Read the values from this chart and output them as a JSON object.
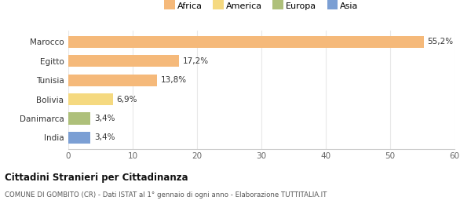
{
  "categories": [
    "India",
    "Danimarca",
    "Bolivia",
    "Tunisia",
    "Egitto",
    "Marocco"
  ],
  "values": [
    3.4,
    3.4,
    6.9,
    13.8,
    17.2,
    55.2
  ],
  "bar_colors": [
    "#7b9fd4",
    "#aec07a",
    "#f5d980",
    "#f5b97a",
    "#f5b97a",
    "#f5b97a"
  ],
  "labels": [
    "3,4%",
    "3,4%",
    "6,9%",
    "13,8%",
    "17,2%",
    "55,2%"
  ],
  "legend_labels": [
    "Africa",
    "America",
    "Europa",
    "Asia"
  ],
  "legend_colors": [
    "#f5b97a",
    "#f5d980",
    "#aec07a",
    "#7b9fd4"
  ],
  "title": "Cittadini Stranieri per Cittadinanza",
  "subtitle": "COMUNE DI GOMBITO (CR) - Dati ISTAT al 1° gennaio di ogni anno - Elaborazione TUTTITALIA.IT",
  "xlim": [
    0,
    60
  ],
  "xticks": [
    0,
    10,
    20,
    30,
    40,
    50,
    60
  ],
  "bg_color": "#ffffff",
  "plot_bg_color": "#ffffff",
  "grid_color": "#e8e8e8"
}
